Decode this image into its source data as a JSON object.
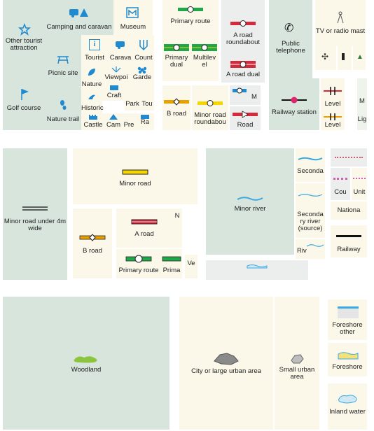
{
  "colors": {
    "tile_green": "#d8e5dc",
    "tile_cream": "#fbf8ea",
    "tile_grey": "#eceeee",
    "icon_blue": "#1f8ad0",
    "road_red": "#d42a3c",
    "road_green": "#1ea84a",
    "road_yellow": "#f5d600",
    "river_blue": "#3aa9e0",
    "woodland_green": "#8bc53f",
    "urban_grey": "#8a8a8a"
  },
  "tourist": {
    "other_attraction": "Other tourist attraction",
    "camping": "Camping and caravan",
    "museum": "Museum",
    "picnic": "Picnic site",
    "tourist_info": "Tourist",
    "caravan": "Carava",
    "country": "Count",
    "nature": "Nature",
    "viewpoint": "Viewpoi",
    "garden": "Garde",
    "craft": "Craft",
    "golf": "Golf course",
    "nature_trail": "Nature trail",
    "historic": "Historic",
    "park": "Park",
    "tou": "Tou",
    "castle": "Castle",
    "cam": "Cam",
    "pre": "Pre",
    "ra": "Ra"
  },
  "roads": {
    "primary_route": "Primary route",
    "a_road_roundabout": "A road roundabout",
    "primary_dual": "Primary dual",
    "multilevel": "Multilev el",
    "a_road_dual": "A road dual",
    "b_road": "B road",
    "minor_road_roundabout": "Minor road roundabou",
    "m": "M",
    "road": "Road"
  },
  "features": {
    "public_telephone": "Public telephone",
    "tv_radio_mast": "TV or radio mast",
    "railway_station": "Railway station",
    "level1": "Level",
    "level2": "Level",
    "m_short": "M",
    "lig": "Lig"
  },
  "middle": {
    "minor_road_under": "Minor road under 4m wide",
    "minor_road": "Minor road",
    "a_road": "A road",
    "n_short": "N",
    "b_road": "B road",
    "primary_route": "Primary route",
    "prima": "Prima",
    "ve": "Ve",
    "minor_river": "Minor river",
    "seconda": "Seconda",
    "secondary_river_source": "Seconda ry river (source)",
    "riv": "Riv",
    "cou": "Cou",
    "unit": "Unit",
    "nationa": "Nationa",
    "railway": "Railway"
  },
  "bottom": {
    "woodland": "Woodland",
    "city_urban": "City or large urban area",
    "small_urban": "Small urban area",
    "foreshore_other": "Foreshore other",
    "foreshore": "Foreshore",
    "inland_water": "Inland water"
  }
}
